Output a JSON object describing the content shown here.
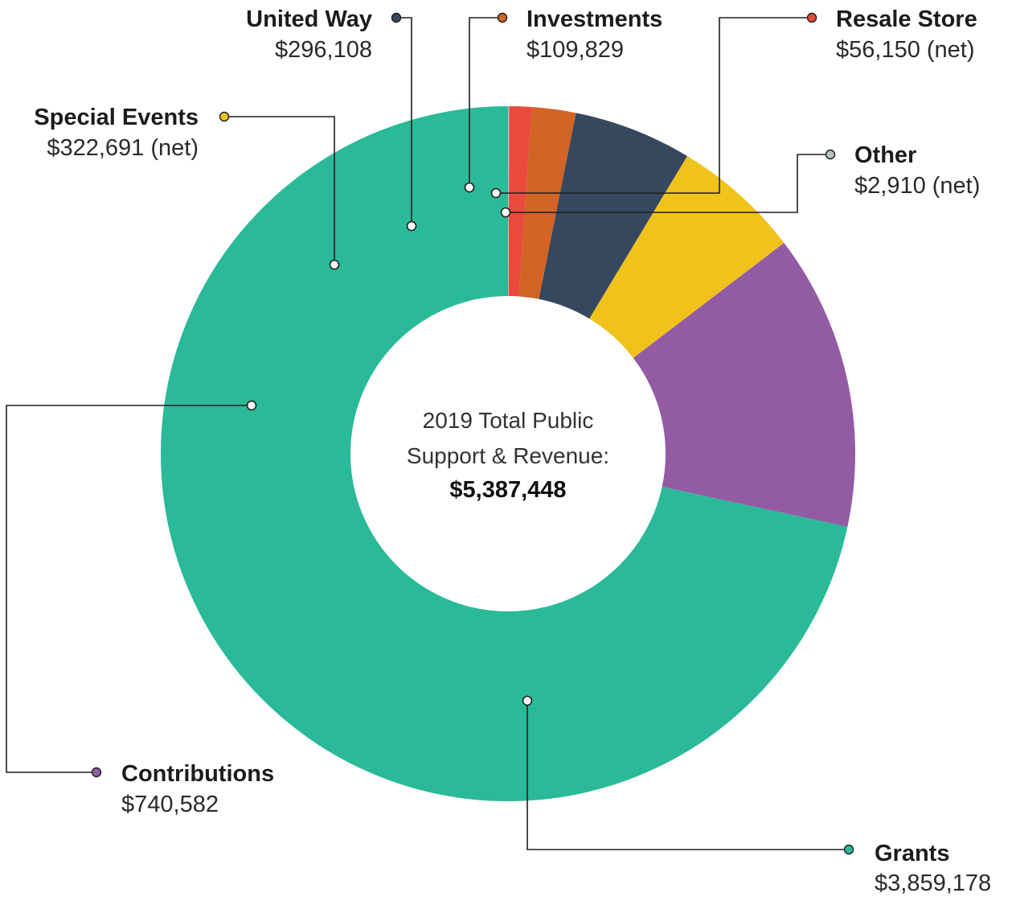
{
  "chart_data": {
    "type": "pie",
    "center_label": {
      "lines": [
        "2019 Total Public",
        "Support & Revenue:"
      ],
      "total": "$5,387,448"
    },
    "slices": [
      {
        "id": "grants",
        "name": "Grants",
        "value": 3859178,
        "value_label": "$3,859,178",
        "color": "#2aba99"
      },
      {
        "id": "contributions",
        "name": "Contributions",
        "value": 740582,
        "value_label": "$740,582",
        "color": "#945ba5"
      },
      {
        "id": "special-events",
        "name": "Special Events",
        "value": 322691,
        "value_label": "$322,691 (net)",
        "color": "#f0c21c"
      },
      {
        "id": "united-way",
        "name": "United Way",
        "value": 296108,
        "value_label": "$296,108",
        "color": "#36485e"
      },
      {
        "id": "investments",
        "name": "Investments",
        "value": 109829,
        "value_label": "$109,829",
        "color": "#d26425"
      },
      {
        "id": "resale-store",
        "name": "Resale Store",
        "value": 56150,
        "value_label": "$56,150 (net)",
        "color": "#ea4a3c"
      },
      {
        "id": "other",
        "name": "Other",
        "value": 2910,
        "value_label": "$2,910 (net)",
        "color": "#b4c1bf"
      }
    ]
  }
}
